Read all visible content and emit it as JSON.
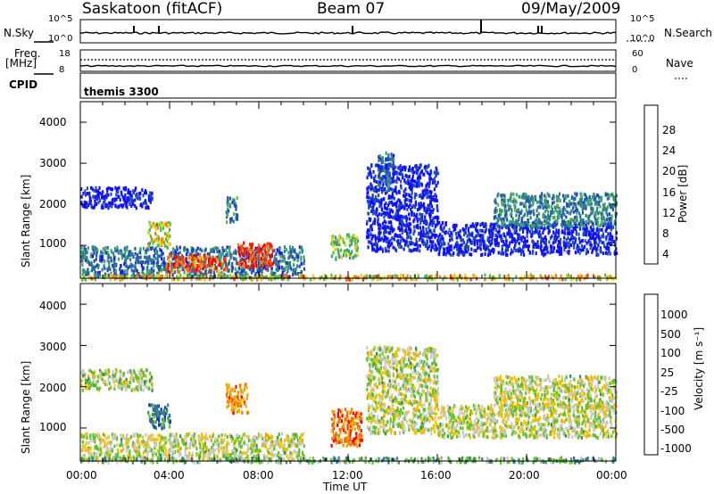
{
  "header": {
    "station": "Saskatoon (fitACF)",
    "beam": "Beam 07",
    "date": "09/May/2009"
  },
  "strip_nsky": {
    "label": "N.Sky",
    "left_ticks": [
      "10^5",
      "10^0"
    ],
    "right_ticks": [
      "10^5",
      "10^0"
    ],
    "right_label": "N.Search"
  },
  "strip_freq": {
    "label_line1": "Freq.",
    "label_line2": "[MHz]",
    "left_ticks": [
      "18",
      "8"
    ],
    "right_ticks": [
      "60",
      "0"
    ],
    "right_label": "Nave"
  },
  "strip_cpid": {
    "label": "CPID",
    "value": "themis 3300"
  },
  "chart_data": [
    {
      "type": "heatmap",
      "name": "power",
      "ylabel": "Slant Range [km]",
      "yticks": [
        "4000",
        "3000",
        "2000",
        "1000"
      ],
      "ylim": [
        200,
        4500
      ],
      "xlim": [
        0,
        24
      ],
      "colorbar": {
        "label": "Power [dB]",
        "ticks": [
          "28",
          "24",
          "20",
          "16",
          "12",
          "8",
          "4"
        ],
        "colors": [
          "#1010ff",
          "#2050b0",
          "#2e7c8c",
          "#3fa070",
          "#4fc040",
          "#e0d020",
          "#f08010",
          "#f03010",
          "#ff0000"
        ]
      },
      "regions": [
        {
          "t0": 0.0,
          "t1": 10.0,
          "r0": 250,
          "r1": 1000,
          "level": 0.25
        },
        {
          "t0": 0.0,
          "t1": 3.2,
          "r0": 1950,
          "r1": 2450,
          "level": 0.0
        },
        {
          "t0": 3.0,
          "t1": 4.0,
          "r0": 1000,
          "r1": 1600,
          "level": 0.6
        },
        {
          "t0": 3.8,
          "t1": 6.5,
          "r0": 400,
          "r1": 800,
          "level": 0.8
        },
        {
          "t0": 7.0,
          "t1": 8.6,
          "r0": 500,
          "r1": 1100,
          "level": 0.85
        },
        {
          "t0": 6.5,
          "t1": 7.0,
          "r0": 1600,
          "r1": 2200,
          "level": 0.3
        },
        {
          "t0": 11.2,
          "t1": 12.4,
          "r0": 700,
          "r1": 1300,
          "level": 0.5
        },
        {
          "t0": 12.8,
          "t1": 16.0,
          "r0": 900,
          "r1": 3000,
          "level": 0.05
        },
        {
          "t0": 13.3,
          "t1": 14.0,
          "r0": 2500,
          "r1": 3300,
          "level": 0.2
        },
        {
          "t0": 16.0,
          "t1": 24.0,
          "r0": 800,
          "r1": 1600,
          "level": 0.05
        },
        {
          "t0": 18.5,
          "t1": 24.0,
          "r0": 1500,
          "r1": 2300,
          "level": 0.3
        },
        {
          "t0": 0.0,
          "t1": 24.0,
          "r0": 200,
          "r1": 320,
          "level": 0.65
        }
      ]
    },
    {
      "type": "heatmap",
      "name": "velocity",
      "ylabel": "Slant Range [km]",
      "yticks": [
        "4000",
        "3000",
        "2000",
        "1000"
      ],
      "ylim": [
        200,
        4500
      ],
      "xlim": [
        0,
        24
      ],
      "xticks": [
        "00:00",
        "04:00",
        "08:00",
        "12:00",
        "16:00",
        "20:00",
        "00:00"
      ],
      "xlabel": "Time UT",
      "colorbar": {
        "label": "Velocity [m s⁻¹]",
        "ticks": [
          "1000",
          "500",
          "100",
          "25",
          "-25",
          "-100",
          "-500",
          "-1000"
        ],
        "colors": [
          "#1030c0",
          "#2c6ca0",
          "#3a8a5a",
          "#60c030",
          "#c8c8c8",
          "#f0c000",
          "#f0a000",
          "#f07000",
          "#ff0000"
        ]
      },
      "regions": [
        {
          "t0": 0.0,
          "t1": 10.0,
          "r0": 250,
          "r1": 900,
          "level": 0.5
        },
        {
          "t0": 0.0,
          "t1": 3.2,
          "r0": 1950,
          "r1": 2450,
          "level": 0.45
        },
        {
          "t0": 3.0,
          "t1": 4.0,
          "r0": 1000,
          "r1": 1600,
          "level": 0.2
        },
        {
          "t0": 6.5,
          "t1": 7.5,
          "r0": 1400,
          "r1": 2100,
          "level": 0.75
        },
        {
          "t0": 11.2,
          "t1": 12.6,
          "r0": 600,
          "r1": 1500,
          "level": 0.8
        },
        {
          "t0": 12.8,
          "t1": 16.0,
          "r0": 900,
          "r1": 3000,
          "level": 0.5
        },
        {
          "t0": 16.0,
          "t1": 24.0,
          "r0": 800,
          "r1": 1600,
          "level": 0.5
        },
        {
          "t0": 18.5,
          "t1": 24.0,
          "r0": 1500,
          "r1": 2300,
          "level": 0.5
        },
        {
          "t0": 0.0,
          "t1": 24.0,
          "r0": 200,
          "r1": 320,
          "level": 0.35
        }
      ]
    }
  ]
}
